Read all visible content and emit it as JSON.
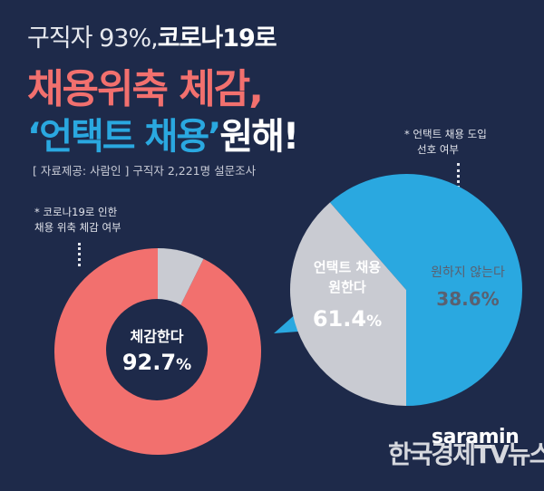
{
  "headline": {
    "line1_light": "구직자 93%,",
    "line1_strong": "코로나19로",
    "line2": "채용위축 체감,",
    "line3_highlight": "‘언택트 채용’",
    "line3_rest": "원해!"
  },
  "source_note": "[ 자료제공: 사람인 ] 구직자 2,221명 설문조사",
  "brand": "saramin",
  "watermark": "한국경제TV뉴스",
  "colors": {
    "background": "#1e2a4a",
    "coral": "#f2706e",
    "blue": "#2aa8e0",
    "gray": "#c9cbd2"
  },
  "chart_data": [
    {
      "type": "pie",
      "note_line1": "* 코로나19로 인한",
      "note_line2": "채용 위축 체감 여부",
      "slices": [
        {
          "label": "체감한다",
          "value": 92.7,
          "display": "92.7",
          "unit": "%",
          "color": "#f2706e"
        },
        {
          "label": "",
          "value": 7.3,
          "color": "#c9cbd2"
        }
      ]
    },
    {
      "type": "pie",
      "note_line1": "* 언택트 채용 도입",
      "note_line2": "선호 여부",
      "slices": [
        {
          "label_line1": "언택트 채용",
          "label_line2": "원한다",
          "value": 61.4,
          "display": "61.4",
          "unit": "%",
          "color": "#2aa8e0"
        },
        {
          "label": "원하지 않는다",
          "value": 38.6,
          "display": "38.6",
          "unit": "%",
          "color": "#c9cbd2"
        }
      ]
    }
  ]
}
